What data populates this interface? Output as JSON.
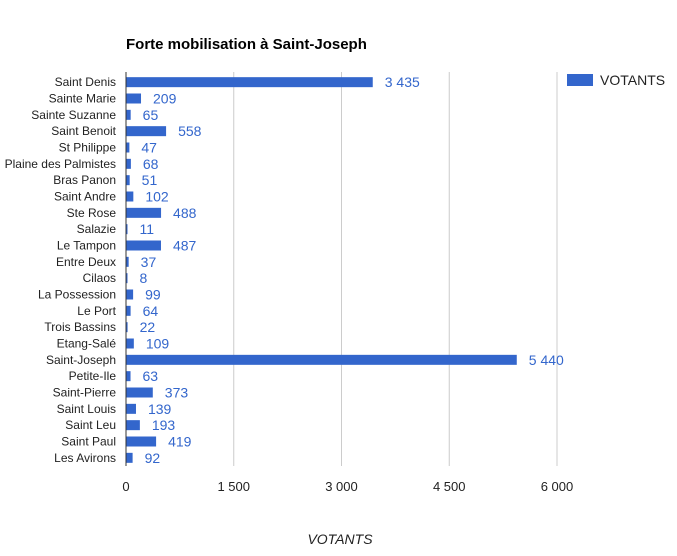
{
  "chart_data": {
    "type": "bar",
    "orientation": "horizontal",
    "title": "Forte mobilisation à Saint-Joseph",
    "xlabel": "VOTANTS",
    "ylabel": "",
    "xlim": [
      0,
      6000
    ],
    "xticks": [
      0,
      1500,
      3000,
      4500,
      6000
    ],
    "xtick_labels": [
      "0",
      "1 500",
      "3 000",
      "4 500",
      "6 000"
    ],
    "grid": true,
    "legend_position": "top-right",
    "bar_color": "#3366cc",
    "categories": [
      "Saint Denis",
      "Sainte Marie",
      "Sainte Suzanne",
      "Saint Benoit",
      "St Philippe",
      "Plaine des Palmistes",
      "Bras Panon",
      "Saint Andre",
      "Ste Rose",
      "Salazie",
      "Le Tampon",
      "Entre Deux",
      "Cilaos",
      "La Possession",
      "Le Port",
      "Trois Bassins",
      "Etang-Salé",
      "Saint-Joseph",
      "Petite-Ile",
      "Saint-Pierre",
      "Saint Louis",
      "Saint Leu",
      "Saint Paul",
      "Les Avirons"
    ],
    "series": [
      {
        "name": "VOTANTS",
        "values": [
          3435,
          209,
          65,
          558,
          47,
          68,
          51,
          102,
          488,
          11,
          487,
          37,
          8,
          99,
          64,
          22,
          109,
          5440,
          63,
          373,
          139,
          193,
          419,
          92
        ],
        "labels": [
          "3 435",
          "209",
          "65",
          "558",
          "47",
          "68",
          "51",
          "102",
          "488",
          "11",
          "487",
          "37",
          "8",
          "99",
          "64",
          "22",
          "109",
          "5 440",
          "63",
          "373",
          "139",
          "193",
          "419",
          "92"
        ]
      }
    ]
  }
}
